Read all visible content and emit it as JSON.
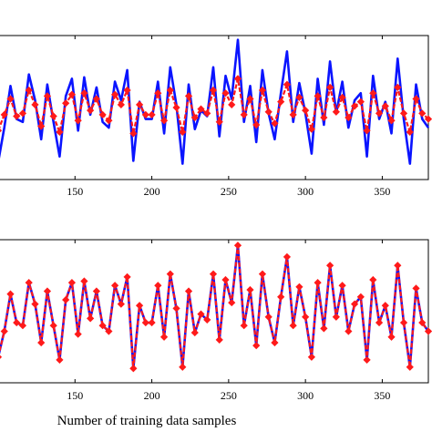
{
  "xlabel": "Number of training data samples",
  "colors": {
    "actual": "#0a14ff",
    "predicted": "#ff1a1a",
    "axes": "#000000",
    "background": "#ffffff"
  },
  "chart_data": [
    {
      "type": "line",
      "panel": "top",
      "xlim": [
        100,
        380
      ],
      "ylim": [
        0,
        1
      ],
      "xticks": [
        150,
        200,
        250,
        300,
        350
      ],
      "xlabel": "",
      "ylabel": "",
      "grid": false,
      "series": [
        {
          "style": "solid",
          "marker": "none",
          "x": [
            100,
            104,
            108,
            112,
            116,
            120,
            124,
            128,
            132,
            136,
            140,
            144,
            148,
            152,
            156,
            160,
            164,
            168,
            172,
            176,
            180,
            184,
            188,
            192,
            196,
            200,
            204,
            208,
            212,
            216,
            220,
            224,
            228,
            232,
            236,
            240,
            244,
            248,
            252,
            256,
            260,
            264,
            268,
            272,
            276,
            280,
            284,
            288,
            292,
            296,
            300,
            304,
            308,
            312,
            316,
            320,
            324,
            328,
            332,
            336,
            340,
            344,
            348,
            352,
            356,
            360,
            364,
            368,
            372,
            376,
            380
          ],
          "values": [
            0.12,
            0.36,
            0.65,
            0.42,
            0.4,
            0.73,
            0.55,
            0.28,
            0.66,
            0.4,
            0.16,
            0.58,
            0.7,
            0.34,
            0.71,
            0.45,
            0.64,
            0.4,
            0.36,
            0.68,
            0.55,
            0.76,
            0.13,
            0.54,
            0.42,
            0.42,
            0.68,
            0.32,
            0.78,
            0.52,
            0.11,
            0.66,
            0.35,
            0.48,
            0.44,
            0.78,
            0.3,
            0.72,
            0.56,
            0.97,
            0.4,
            0.65,
            0.26,
            0.76,
            0.46,
            0.28,
            0.6,
            0.89,
            0.4,
            0.67,
            0.46,
            0.18,
            0.7,
            0.38,
            0.82,
            0.46,
            0.68,
            0.36,
            0.55,
            0.6,
            0.16,
            0.72,
            0.42,
            0.54,
            0.32,
            0.84,
            0.42,
            0.11,
            0.66,
            0.42,
            0.36
          ]
        },
        {
          "style": "dashed",
          "marker": "diamond",
          "x": [
            100,
            104,
            108,
            112,
            116,
            120,
            124,
            128,
            132,
            136,
            140,
            144,
            148,
            152,
            156,
            160,
            164,
            168,
            172,
            176,
            180,
            184,
            188,
            192,
            196,
            200,
            204,
            208,
            212,
            216,
            220,
            224,
            228,
            232,
            236,
            240,
            244,
            248,
            252,
            256,
            260,
            264,
            268,
            272,
            276,
            280,
            284,
            288,
            292,
            296,
            300,
            304,
            308,
            312,
            316,
            320,
            324,
            328,
            332,
            336,
            340,
            344,
            348,
            352,
            356,
            360,
            364,
            368,
            372,
            376,
            380
          ],
          "values": [
            0.34,
            0.45,
            0.56,
            0.44,
            0.46,
            0.62,
            0.52,
            0.37,
            0.58,
            0.44,
            0.33,
            0.53,
            0.59,
            0.41,
            0.6,
            0.48,
            0.56,
            0.45,
            0.41,
            0.59,
            0.52,
            0.62,
            0.32,
            0.52,
            0.45,
            0.45,
            0.6,
            0.41,
            0.62,
            0.5,
            0.33,
            0.58,
            0.43,
            0.49,
            0.46,
            0.62,
            0.4,
            0.6,
            0.52,
            0.7,
            0.45,
            0.56,
            0.38,
            0.62,
            0.47,
            0.39,
            0.54,
            0.66,
            0.45,
            0.57,
            0.48,
            0.35,
            0.58,
            0.43,
            0.64,
            0.47,
            0.57,
            0.43,
            0.51,
            0.54,
            0.34,
            0.6,
            0.46,
            0.51,
            0.41,
            0.64,
            0.46,
            0.33,
            0.56,
            0.46,
            0.42
          ]
        }
      ]
    },
    {
      "type": "line",
      "panel": "bottom",
      "xlim": [
        100,
        380
      ],
      "ylim": [
        0,
        1
      ],
      "xticks": [
        150,
        200,
        250,
        300,
        350
      ],
      "xlabel": "Number of training data samples",
      "ylabel": "",
      "grid": false,
      "series": [
        {
          "style": "solid",
          "marker": "none",
          "x": [
            100,
            104,
            108,
            112,
            116,
            120,
            124,
            128,
            132,
            136,
            140,
            144,
            148,
            152,
            156,
            160,
            164,
            168,
            172,
            176,
            180,
            184,
            188,
            192,
            196,
            200,
            204,
            208,
            212,
            216,
            220,
            224,
            228,
            232,
            236,
            240,
            244,
            248,
            252,
            256,
            260,
            264,
            268,
            272,
            276,
            280,
            284,
            288,
            292,
            296,
            300,
            304,
            308,
            312,
            316,
            320,
            324,
            328,
            332,
            336,
            340,
            344,
            348,
            352,
            356,
            360,
            364,
            368,
            372,
            376,
            380
          ],
          "values": [
            0.18,
            0.36,
            0.62,
            0.42,
            0.4,
            0.7,
            0.55,
            0.28,
            0.64,
            0.4,
            0.16,
            0.58,
            0.7,
            0.34,
            0.71,
            0.45,
            0.64,
            0.4,
            0.36,
            0.68,
            0.55,
            0.74,
            0.1,
            0.54,
            0.42,
            0.42,
            0.68,
            0.32,
            0.76,
            0.52,
            0.11,
            0.64,
            0.35,
            0.48,
            0.44,
            0.76,
            0.3,
            0.72,
            0.56,
            0.96,
            0.4,
            0.65,
            0.26,
            0.76,
            0.46,
            0.28,
            0.6,
            0.88,
            0.4,
            0.67,
            0.46,
            0.18,
            0.7,
            0.38,
            0.82,
            0.46,
            0.68,
            0.36,
            0.55,
            0.6,
            0.16,
            0.72,
            0.42,
            0.54,
            0.32,
            0.82,
            0.42,
            0.11,
            0.66,
            0.42,
            0.36
          ]
        },
        {
          "style": "dashed",
          "marker": "diamond",
          "x": [
            100,
            104,
            108,
            112,
            116,
            120,
            124,
            128,
            132,
            136,
            140,
            144,
            148,
            152,
            156,
            160,
            164,
            168,
            172,
            176,
            180,
            184,
            188,
            192,
            196,
            200,
            204,
            208,
            212,
            216,
            220,
            224,
            228,
            232,
            236,
            240,
            244,
            248,
            252,
            256,
            260,
            264,
            268,
            272,
            276,
            280,
            284,
            288,
            292,
            296,
            300,
            304,
            308,
            312,
            316,
            320,
            324,
            328,
            332,
            336,
            340,
            344,
            348,
            352,
            356,
            360,
            364,
            368,
            372,
            376,
            380
          ],
          "values": [
            0.18,
            0.36,
            0.62,
            0.42,
            0.4,
            0.7,
            0.55,
            0.28,
            0.64,
            0.4,
            0.16,
            0.58,
            0.7,
            0.34,
            0.71,
            0.45,
            0.64,
            0.4,
            0.36,
            0.68,
            0.55,
            0.74,
            0.1,
            0.54,
            0.42,
            0.42,
            0.68,
            0.32,
            0.76,
            0.52,
            0.11,
            0.64,
            0.35,
            0.48,
            0.44,
            0.76,
            0.3,
            0.72,
            0.56,
            0.96,
            0.4,
            0.65,
            0.26,
            0.76,
            0.46,
            0.28,
            0.6,
            0.88,
            0.4,
            0.67,
            0.46,
            0.18,
            0.7,
            0.38,
            0.82,
            0.46,
            0.68,
            0.36,
            0.55,
            0.6,
            0.16,
            0.72,
            0.42,
            0.54,
            0.32,
            0.82,
            0.42,
            0.11,
            0.66,
            0.42,
            0.36
          ]
        }
      ]
    }
  ]
}
